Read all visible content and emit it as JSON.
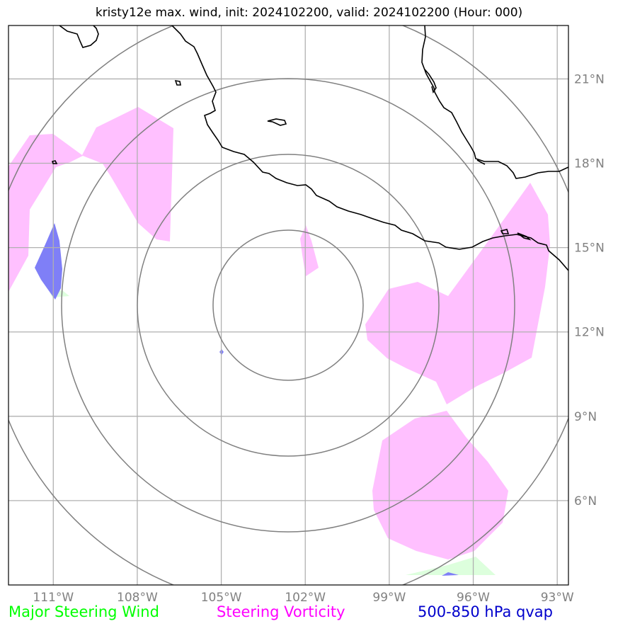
{
  "title": "kristy12e max. wind, init: 2024102200, valid: 2024102200 (Hour: 000)",
  "map": {
    "extent": {
      "lon_min": -112.6,
      "lon_max": -92.6,
      "lat_min": 3.0,
      "lat_max": 22.9
    },
    "lon_ticks": [
      {
        "value": -111,
        "label": "111°W"
      },
      {
        "value": -108,
        "label": "108°W"
      },
      {
        "value": -105,
        "label": "105°W"
      },
      {
        "value": -102,
        "label": "102°W"
      },
      {
        "value": -99,
        "label": "99°W"
      },
      {
        "value": -96,
        "label": "96°W"
      },
      {
        "value": -93,
        "label": "93°W"
      }
    ],
    "lat_ticks": [
      {
        "value": 21,
        "label": "21°N"
      },
      {
        "value": 18,
        "label": "18°N"
      },
      {
        "value": 15,
        "label": "15°N"
      },
      {
        "value": 12,
        "label": "12°N"
      },
      {
        "value": 9,
        "label": "9°N"
      },
      {
        "value": 6,
        "label": "6°N"
      }
    ],
    "colors": {
      "grid": "#b0b0b0",
      "range_rings": "#808080",
      "coast": "#000000",
      "steering_wind": "#ddffdd",
      "steering_vorticity": "#ffc0ff",
      "qvap": "#7f7ff7"
    }
  },
  "legend": {
    "wind": {
      "label": "Major Steering Wind",
      "color": "#00ff00"
    },
    "vorticity": {
      "label": "Steering Vorticity",
      "color": "#ff00ff"
    },
    "qvap": {
      "label": "500-850 hPa qvap",
      "color": "#0000cc"
    }
  }
}
